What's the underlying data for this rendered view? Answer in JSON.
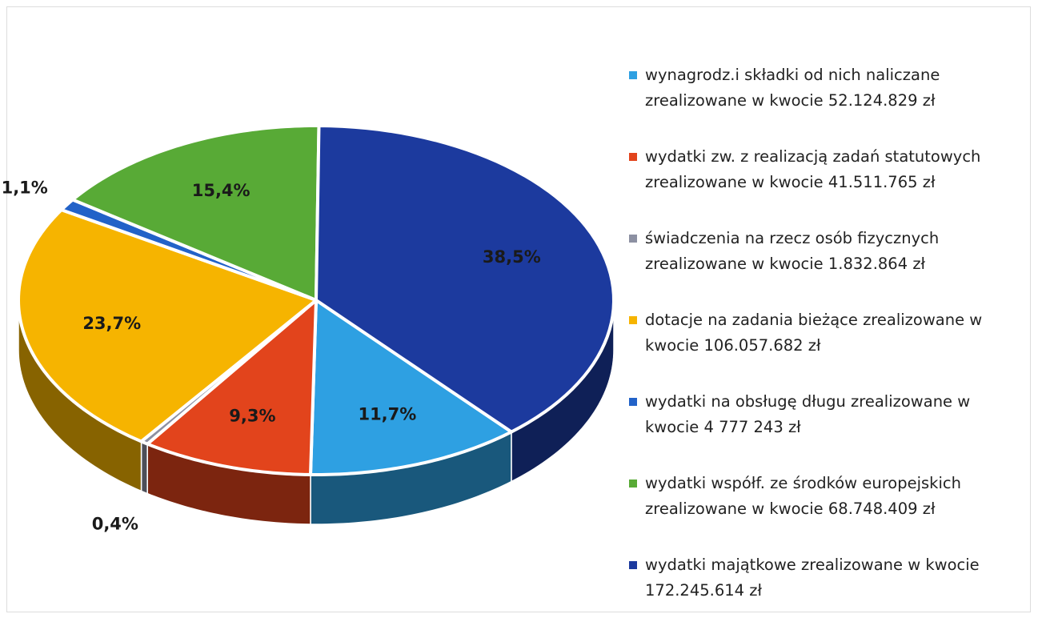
{
  "chart_data": {
    "type": "pie",
    "categories": [
      "wynagrodz.i składki od nich naliczane zrealizowane w kwocie 52.124.829 zł",
      "wydatki zw. z realizacją zadań statutowych zrealizowane w kwocie 41.511.765 zł",
      "świadczenia na rzecz osób fizycznych zrealizowane w kwocie 1.832.864 zł",
      "dotacje na zadania bieżące zrealizowane w kwocie 106.057.682 zł",
      "wydatki na obsługę długu zrealizowane w kwocie 4 777 243 zł",
      "wydatki współf. ze środków europejskich zrealizowane w kwocie 68.748.409 zł",
      "wydatki majątkowe zrealizowane w kwocie 172.245.614 zł"
    ],
    "values": [
      11.7,
      9.3,
      0.4,
      23.7,
      1.1,
      15.4,
      38.5
    ],
    "value_labels": [
      "11,7%",
      "9,3%",
      "0,4%",
      "23,7%",
      "1,1%",
      "15,4%",
      "38,5%"
    ],
    "colors": [
      "#2ea0e2",
      "#e2441c",
      "#8c90a2",
      "#f6b400",
      "#2262c8",
      "#58aa36",
      "#1c3a9e"
    ],
    "legend": "right"
  }
}
